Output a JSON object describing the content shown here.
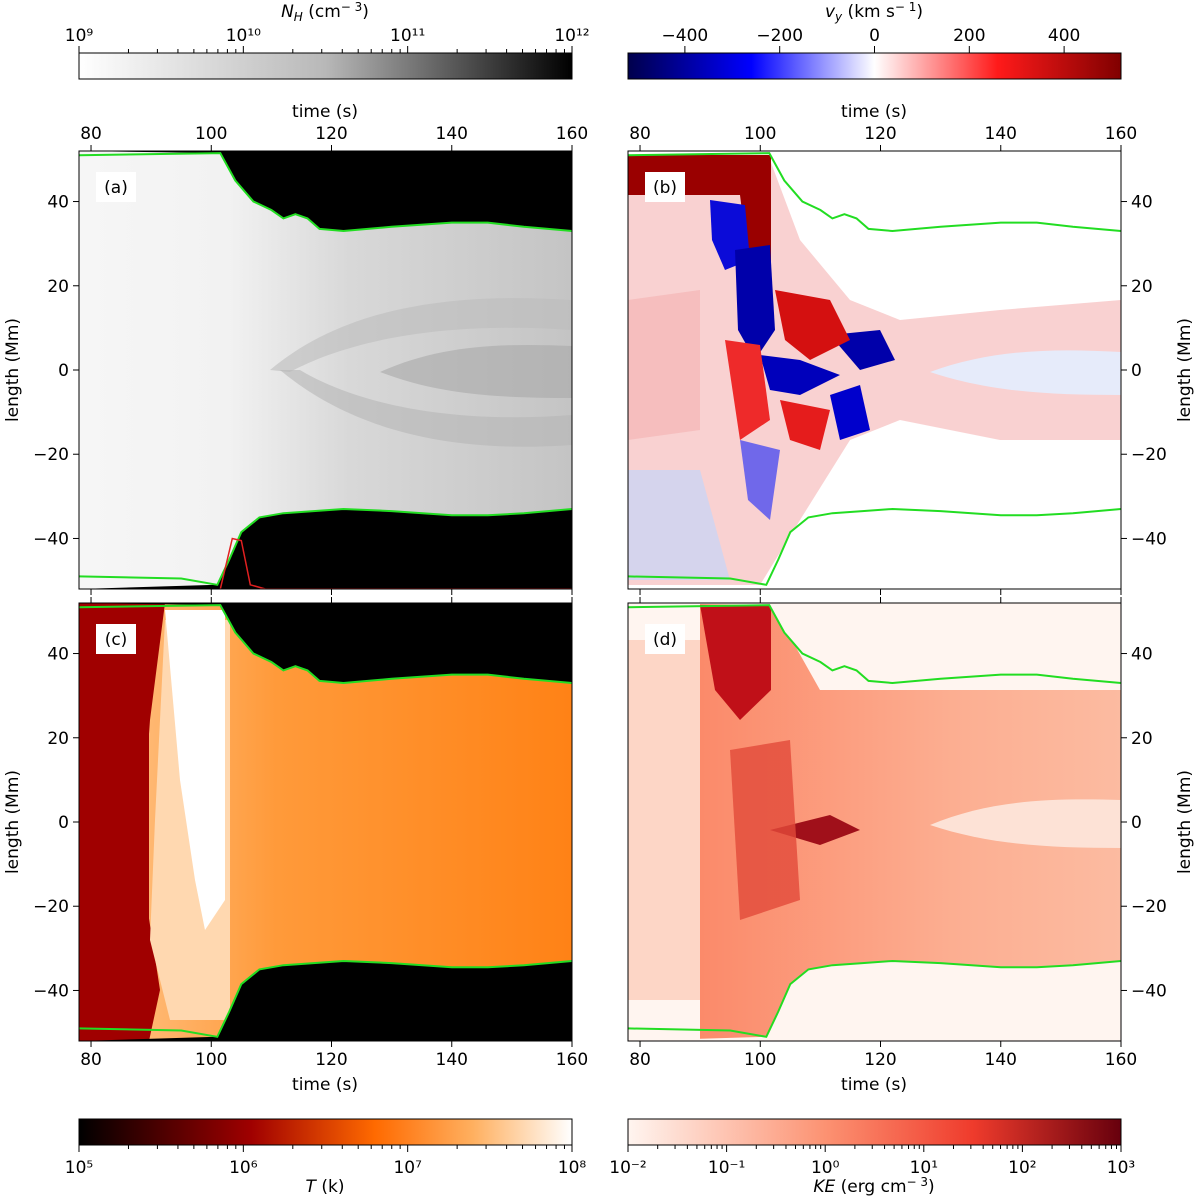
{
  "chart_data": {
    "type": "heatmap",
    "panels": [
      {
        "id": "a",
        "tag": "(a)",
        "quantity": "hydrogen number density",
        "colormap": "gray_r",
        "xlim": [
          78,
          160
        ],
        "ylim": [
          -52,
          52
        ],
        "x_ticks": [
          80,
          100,
          120,
          140,
          160
        ],
        "y_ticks": [
          -40,
          -20,
          0,
          20,
          40
        ],
        "xlabel_top": "time (s)",
        "ylabel": "length (Mm)",
        "upper_boundary": [
          [
            78,
            51
          ],
          [
            101.5,
            51.5
          ],
          [
            104,
            45
          ],
          [
            107,
            40
          ],
          [
            110,
            38
          ],
          [
            112,
            36
          ],
          [
            114,
            37
          ],
          [
            116,
            36
          ],
          [
            118,
            33.5
          ],
          [
            122,
            33
          ],
          [
            130,
            34
          ],
          [
            140,
            35
          ],
          [
            146,
            35
          ],
          [
            152,
            34
          ],
          [
            160,
            33
          ]
        ],
        "lower_boundary": [
          [
            78,
            -49
          ],
          [
            95,
            -49.5
          ],
          [
            101,
            -51
          ],
          [
            103,
            -45
          ],
          [
            105,
            -38.5
          ],
          [
            108,
            -35
          ],
          [
            112,
            -34
          ],
          [
            117,
            -33.5
          ],
          [
            122,
            -33
          ],
          [
            130,
            -33.5
          ],
          [
            140,
            -34.5
          ],
          [
            146,
            -34.5
          ],
          [
            152,
            -34
          ],
          [
            160,
            -33
          ]
        ],
        "red_trace": [
          [
            101.5,
            -52
          ],
          [
            103.5,
            -40
          ],
          [
            105,
            -40.5
          ],
          [
            106.5,
            -51
          ],
          [
            109,
            -52
          ],
          [
            160,
            -52
          ]
        ]
      },
      {
        "id": "b",
        "tag": "(b)",
        "quantity": "vertical velocity",
        "colormap": "seismic",
        "xlim": [
          78,
          160
        ],
        "ylim": [
          -52,
          52
        ],
        "x_ticks": [
          80,
          100,
          120,
          140,
          160
        ],
        "y_ticks": [
          -40,
          -20,
          0,
          20,
          40
        ],
        "xlabel_top": "time (s)",
        "ylabel": "length (Mm)"
      },
      {
        "id": "c",
        "tag": "(c)",
        "quantity": "temperature",
        "colormap": "gist_heat",
        "xlim": [
          78,
          160
        ],
        "ylim": [
          -52,
          52
        ],
        "x_ticks": [
          80,
          100,
          120,
          140,
          160
        ],
        "y_ticks": [
          -40,
          -20,
          0,
          20,
          40
        ],
        "xlabel": "time (s)",
        "ylabel": "length (Mm)"
      },
      {
        "id": "d",
        "tag": "(d)",
        "quantity": "kinetic energy density",
        "colormap": "Reds",
        "xlim": [
          78,
          160
        ],
        "ylim": [
          -52,
          52
        ],
        "x_ticks": [
          80,
          100,
          120,
          140,
          160
        ],
        "y_ticks": [
          -40,
          -20,
          0,
          20,
          40
        ],
        "xlabel": "time (s)",
        "ylabel": "length (Mm)"
      }
    ],
    "colorbars": [
      {
        "id": "nh",
        "label": "$N_H$ (cm$^-3$)",
        "label_plain": "N_H (cm⁻3)",
        "scale": "log",
        "min_exp": 9,
        "max_exp": 12,
        "tick_labels": [
          "10⁹",
          "10¹⁰",
          "10¹¹",
          "10¹²"
        ]
      },
      {
        "id": "vy",
        "label_plain": "v_y (km s⁻1)",
        "scale": "linear",
        "min": -520,
        "max": 520,
        "ticks": [
          -400,
          -200,
          0,
          200,
          400
        ],
        "tick_labels": [
          "−400",
          "−200",
          "0",
          "200",
          "400"
        ]
      },
      {
        "id": "t",
        "label_plain": "T (k)",
        "scale": "log",
        "min_exp": 5,
        "max_exp": 8,
        "tick_labels": [
          "10⁵",
          "10⁶",
          "10⁷",
          "10⁸"
        ]
      },
      {
        "id": "ke",
        "label_plain": "KE (erg cm⁻3)",
        "scale": "log",
        "min_exp": -2,
        "max_exp": 3,
        "tick_labels": [
          "10⁻²",
          "10⁻¹",
          "10⁰",
          "10¹",
          "10²",
          "10³"
        ]
      }
    ],
    "colors": {
      "boundary_line": "#22dd22",
      "red_trace": "#e02020",
      "outside_loop_density": "#000000",
      "vy_positive": "#b40000",
      "vy_negative": "#00007f",
      "t_hot": "#ffffff",
      "t_warm": "#ff8a1a",
      "t_cool": "#a00000"
    }
  },
  "labels": {
    "nh_label": "N",
    "nh_sub": "H",
    "nh_unit": " (cm",
    "nh_sup": "− 3",
    "nh_close": ")",
    "vy_label": "v",
    "vy_sub": "y",
    "vy_unit": " (km s",
    "vy_sup": "− 1",
    "vy_close": ")",
    "t_label": "T",
    "t_unit": " (k)",
    "ke_label": "KE",
    "ke_unit": " (erg cm",
    "ke_sup": "− 3",
    "ke_close": ")",
    "time": "time (s)",
    "length": "length (Mm)"
  }
}
